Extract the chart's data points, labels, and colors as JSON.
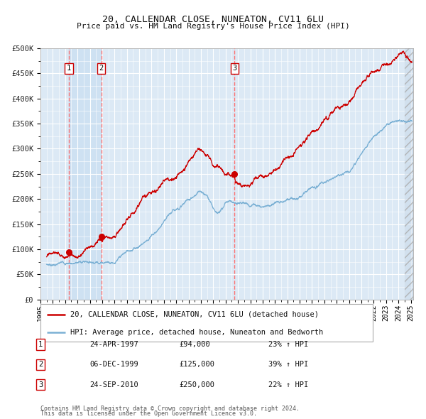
{
  "title": "20, CALLENDAR CLOSE, NUNEATON, CV11 6LU",
  "subtitle": "Price paid vs. HM Land Registry's House Price Index (HPI)",
  "sale_label": "20, CALLENDAR CLOSE, NUNEATON, CV11 6LU (detached house)",
  "hpi_label": "HPI: Average price, detached house, Nuneaton and Bedworth",
  "transactions": [
    {
      "num": 1,
      "date": "24-APR-1997",
      "price": 94000,
      "pct": "23%",
      "dir": "↑",
      "year": 1997.31
    },
    {
      "num": 2,
      "date": "06-DEC-1999",
      "price": 125000,
      "pct": "39%",
      "dir": "↑",
      "year": 1999.92
    },
    {
      "num": 3,
      "date": "24-SEP-2010",
      "price": 250000,
      "pct": "22%",
      "dir": "↑",
      "year": 2010.73
    }
  ],
  "footnote1": "Contains HM Land Registry data © Crown copyright and database right 2024.",
  "footnote2": "This data is licensed under the Open Government Licence v3.0.",
  "ylim": [
    0,
    500000
  ],
  "yticks": [
    0,
    50000,
    100000,
    150000,
    200000,
    250000,
    300000,
    350000,
    400000,
    450000,
    500000
  ],
  "xlim_start": 1995.5,
  "xlim_end": 2025.2,
  "bg_color": "#dce9f5",
  "grid_color": "#ffffff",
  "sale_color": "#cc0000",
  "hpi_color": "#7ab0d4",
  "dashed_color": "#ff6666",
  "marker_color": "#cc0000",
  "hpi_base_waypoints": [
    [
      1995.5,
      70000
    ],
    [
      1997.0,
      73000
    ],
    [
      1999.0,
      78000
    ],
    [
      2001.0,
      90000
    ],
    [
      2003.0,
      120000
    ],
    [
      2005.0,
      165000
    ],
    [
      2007.0,
      205000
    ],
    [
      2007.8,
      218000
    ],
    [
      2008.5,
      210000
    ],
    [
      2009.0,
      185000
    ],
    [
      2009.5,
      178000
    ],
    [
      2010.0,
      192000
    ],
    [
      2010.5,
      196000
    ],
    [
      2011.0,
      195000
    ],
    [
      2012.0,
      190000
    ],
    [
      2013.0,
      195000
    ],
    [
      2014.0,
      205000
    ],
    [
      2015.0,
      215000
    ],
    [
      2016.0,
      225000
    ],
    [
      2017.0,
      240000
    ],
    [
      2018.0,
      248000
    ],
    [
      2019.0,
      255000
    ],
    [
      2020.0,
      255000
    ],
    [
      2021.0,
      280000
    ],
    [
      2022.0,
      315000
    ],
    [
      2023.0,
      340000
    ],
    [
      2024.0,
      350000
    ],
    [
      2025.1,
      355000
    ]
  ],
  "prop_base_waypoints": [
    [
      1995.5,
      85000
    ],
    [
      1997.0,
      88000
    ],
    [
      1997.31,
      94000
    ],
    [
      1999.0,
      108000
    ],
    [
      1999.92,
      125000
    ],
    [
      2001.0,
      148000
    ],
    [
      2003.0,
      195000
    ],
    [
      2005.0,
      248000
    ],
    [
      2007.0,
      290000
    ],
    [
      2007.8,
      302000
    ],
    [
      2008.3,
      300000
    ],
    [
      2008.8,
      285000
    ],
    [
      2009.0,
      270000
    ],
    [
      2009.5,
      260000
    ],
    [
      2010.0,
      255000
    ],
    [
      2010.73,
      250000
    ],
    [
      2011.0,
      240000
    ],
    [
      2011.5,
      235000
    ],
    [
      2012.0,
      240000
    ],
    [
      2013.0,
      255000
    ],
    [
      2014.0,
      270000
    ],
    [
      2015.0,
      295000
    ],
    [
      2016.0,
      315000
    ],
    [
      2017.0,
      335000
    ],
    [
      2018.0,
      355000
    ],
    [
      2019.0,
      375000
    ],
    [
      2020.0,
      385000
    ],
    [
      2021.0,
      410000
    ],
    [
      2022.0,
      440000
    ],
    [
      2023.0,
      455000
    ],
    [
      2024.0,
      470000
    ],
    [
      2024.5,
      475000
    ],
    [
      2025.1,
      472000
    ]
  ]
}
